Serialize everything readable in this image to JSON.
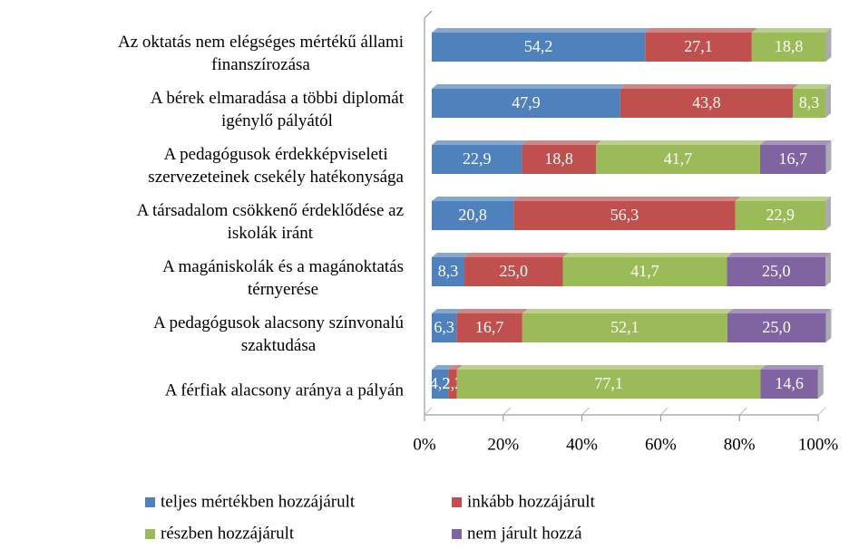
{
  "chart_data": {
    "type": "stacked_bar_horizontal",
    "categories": [
      [
        "Az oktatás nem elégséges mértékű állami",
        "finanszírozása"
      ],
      [
        "A bérek elmaradása a többi diplomát",
        "igénylő pályától"
      ],
      [
        "A pedagógusok érdekképviseleti",
        "szervezeteinek csekély hatékonysága"
      ],
      [
        "A társadalom csökkenő érdeklődése az",
        "iskolák iránt"
      ],
      [
        "A magániskolák és a magánoktatás",
        "térnyerése"
      ],
      [
        "A pedagógusok alacsony színvonalú",
        "szaktudása"
      ],
      [
        "A férfiak alacsony aránya a pályán"
      ]
    ],
    "series": [
      {
        "name": "teljes mértékben hozzájárult",
        "color": "#4f81bd",
        "values": [
          54.2,
          47.9,
          22.9,
          20.8,
          8.3,
          6.3,
          4.2
        ],
        "value_labels": [
          "54,2",
          "47,9",
          "22,9",
          "20,8",
          "8,3",
          "6,3",
          "4,2"
        ]
      },
      {
        "name": "inkább hozzájárult",
        "color": "#c0504d",
        "values": [
          27.1,
          43.8,
          18.8,
          56.3,
          25.0,
          16.7,
          2.2
        ],
        "value_labels": [
          "27,1",
          "43,8",
          "18,8",
          "56,3",
          "25,0",
          "16,7",
          "2,2"
        ]
      },
      {
        "name": "részben hozzájárult",
        "color": "#9bbb59",
        "values": [
          18.8,
          8.3,
          41.7,
          22.9,
          41.7,
          52.1,
          77.1
        ],
        "value_labels": [
          "18,8",
          "8,3",
          "41,7",
          "22,9",
          "41,7",
          "52,1",
          "77,1"
        ]
      },
      {
        "name": "nem járult hozzá",
        "color": "#8064a2",
        "values": [
          null,
          null,
          16.7,
          null,
          25.0,
          25.0,
          14.6
        ],
        "value_labels": [
          null,
          null,
          "16,7",
          null,
          "25,0",
          "25,0",
          "14,6"
        ]
      }
    ],
    "xlim": [
      0,
      100
    ],
    "xticks": [
      {
        "value": 0,
        "label": "0%"
      },
      {
        "value": 20,
        "label": "20%"
      },
      {
        "value": 40,
        "label": "40%"
      },
      {
        "value": 60,
        "label": "60%"
      },
      {
        "value": 80,
        "label": "80%"
      },
      {
        "value": 100,
        "label": "100%"
      }
    ],
    "legend": "bottom"
  }
}
